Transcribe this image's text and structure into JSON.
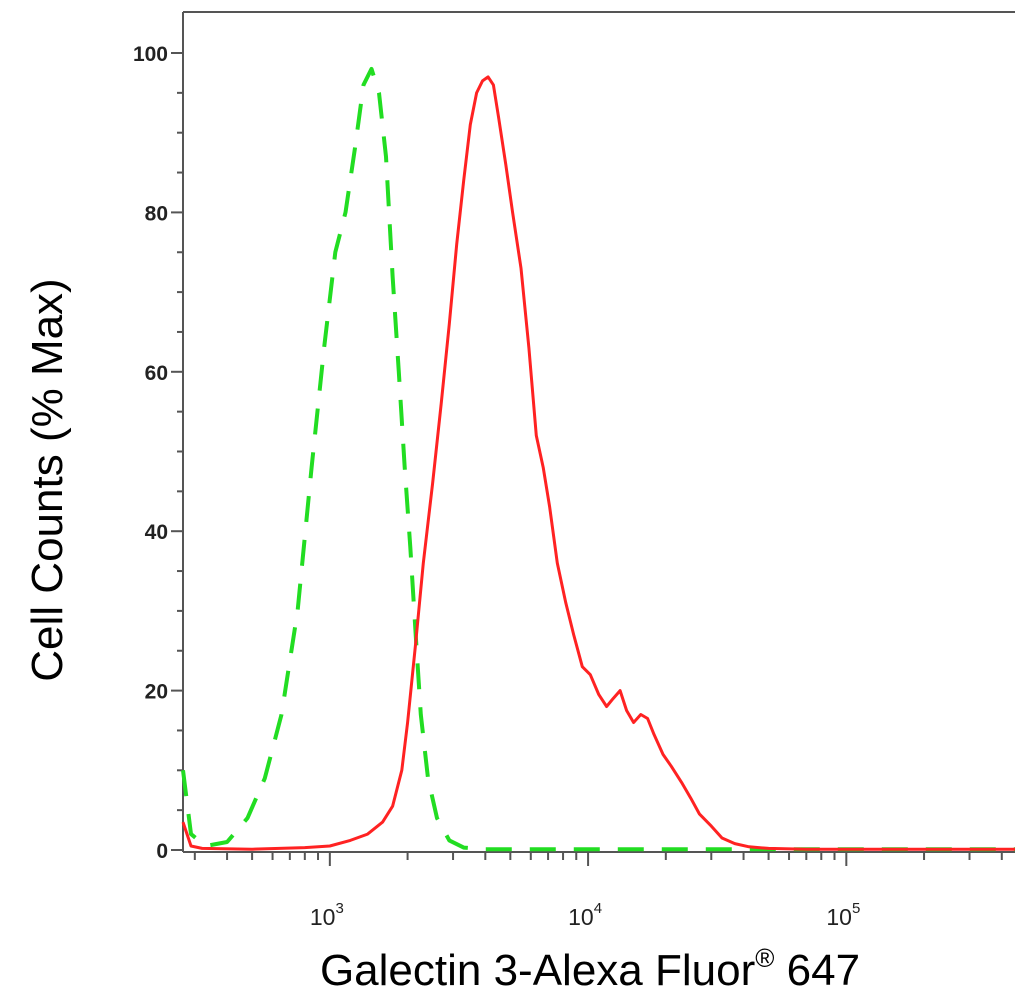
{
  "chart_data": {
    "type": "line",
    "xlabel": "Galectin 3-Alexa Fluor",
    "xlabel_superscript": "®",
    "xlabel_suffix": " 647",
    "ylabel": "Cell Counts (% Max)",
    "x_scale": "log",
    "xlim": [
      270,
      450000
    ],
    "ylim": [
      0,
      100
    ],
    "y_ticks": [
      0,
      20,
      40,
      60,
      80,
      100
    ],
    "x_major_ticks": [
      {
        "value": 1000,
        "base": "10",
        "exp": "3"
      },
      {
        "value": 10000,
        "base": "10",
        "exp": "4"
      },
      {
        "value": 100000,
        "base": "10",
        "exp": "5"
      }
    ],
    "grid": false,
    "legend": "none",
    "series": [
      {
        "style": "dashed",
        "color": "#22dd22",
        "points": [
          [
            270,
            10
          ],
          [
            290,
            2
          ],
          [
            330,
            0.5
          ],
          [
            400,
            1
          ],
          [
            480,
            4
          ],
          [
            560,
            9
          ],
          [
            650,
            17
          ],
          [
            750,
            30
          ],
          [
            850,
            48
          ],
          [
            950,
            63
          ],
          [
            1050,
            75
          ],
          [
            1150,
            80
          ],
          [
            1250,
            88
          ],
          [
            1350,
            96
          ],
          [
            1450,
            98
          ],
          [
            1550,
            95
          ],
          [
            1650,
            87
          ],
          [
            1750,
            72
          ],
          [
            1850,
            60
          ],
          [
            1950,
            48
          ],
          [
            2050,
            38
          ],
          [
            2150,
            27
          ],
          [
            2250,
            17
          ],
          [
            2400,
            9
          ],
          [
            2600,
            4
          ],
          [
            2900,
            1.2
          ],
          [
            3300,
            0.3
          ],
          [
            4000,
            0.1
          ],
          [
            20000,
            0.1
          ],
          [
            450000,
            0.1
          ]
        ]
      },
      {
        "style": "solid",
        "color": "#ff2222",
        "points": [
          [
            270,
            3.5
          ],
          [
            290,
            0.5
          ],
          [
            320,
            0.2
          ],
          [
            500,
            0.1
          ],
          [
            800,
            0.3
          ],
          [
            1000,
            0.5
          ],
          [
            1200,
            1.2
          ],
          [
            1400,
            2
          ],
          [
            1600,
            3.5
          ],
          [
            1750,
            5.5
          ],
          [
            1900,
            10
          ],
          [
            2000,
            16
          ],
          [
            2150,
            26
          ],
          [
            2300,
            36
          ],
          [
            2500,
            46
          ],
          [
            2700,
            56
          ],
          [
            2900,
            66
          ],
          [
            3100,
            76
          ],
          [
            3300,
            84
          ],
          [
            3500,
            91
          ],
          [
            3700,
            95
          ],
          [
            3900,
            96.5
          ],
          [
            4100,
            97
          ],
          [
            4300,
            96
          ],
          [
            4500,
            92
          ],
          [
            4800,
            86
          ],
          [
            5100,
            80
          ],
          [
            5500,
            73
          ],
          [
            5900,
            63
          ],
          [
            6300,
            52
          ],
          [
            6700,
            48
          ],
          [
            7100,
            43
          ],
          [
            7600,
            36
          ],
          [
            8200,
            31
          ],
          [
            8800,
            27
          ],
          [
            9500,
            23
          ],
          [
            10200,
            22
          ],
          [
            11000,
            19.5
          ],
          [
            11800,
            18
          ],
          [
            12500,
            19
          ],
          [
            13300,
            20
          ],
          [
            14100,
            17.5
          ],
          [
            15000,
            16
          ],
          [
            16000,
            17
          ],
          [
            17000,
            16.5
          ],
          [
            18000,
            14.5
          ],
          [
            19500,
            12
          ],
          [
            21000,
            10.5
          ],
          [
            23000,
            8.5
          ],
          [
            25000,
            6.5
          ],
          [
            27000,
            4.5
          ],
          [
            30000,
            3
          ],
          [
            33000,
            1.5
          ],
          [
            37000,
            0.8
          ],
          [
            42000,
            0.4
          ],
          [
            50000,
            0.2
          ],
          [
            70000,
            0.1
          ],
          [
            450000,
            0.1
          ]
        ]
      }
    ]
  }
}
